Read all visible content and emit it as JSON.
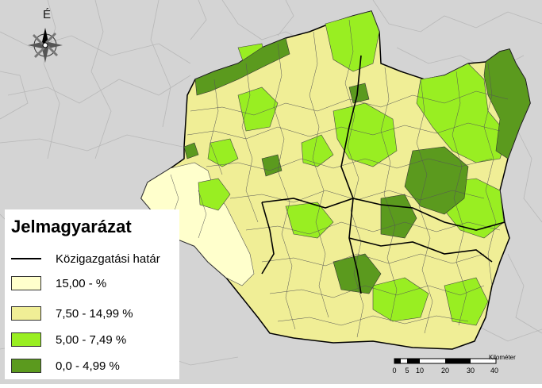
{
  "map": {
    "north_label": "É",
    "legend": {
      "title": "Jelmagyarázat",
      "boundary_label": "Közigazgatási határ",
      "classes": [
        {
          "label": "15,00 - %",
          "color": "#ffffcc"
        },
        {
          "label": "7,50 - 14,99 %",
          "color": "#f0ee96"
        },
        {
          "label": "5,00 - 7,49 %",
          "color": "#99ee22"
        },
        {
          "label": "0,0 - 4,99 %",
          "color": "#5b9a1e"
        }
      ]
    },
    "scale_bar": {
      "unit": "Kilométer",
      "ticks": [
        "0",
        "5",
        "10",
        "20",
        "30",
        "40"
      ]
    },
    "colors": {
      "background_region": "#d4d4d4",
      "border": "#000000",
      "highlight_region": "#99ee22",
      "dark_region": "#5b9a1e",
      "light_region": "#ffffcc",
      "mid_region": "#f0ee96"
    }
  }
}
